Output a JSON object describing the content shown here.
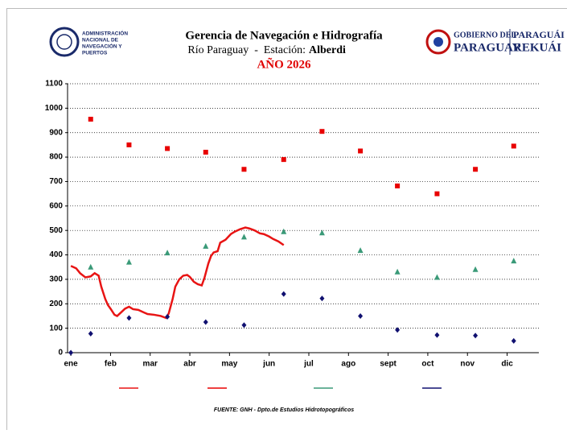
{
  "header": {
    "org_lines": [
      "ADMINISTRACIÓN",
      "NACIONAL DE",
      "NAVEGACIÓN Y",
      "PUERTOS"
    ],
    "gov_lines": [
      "GOBIERNO DEL",
      "PARAGUAY"
    ],
    "gov_guarani": [
      "PARAGUÁI",
      "REKUÁI"
    ]
  },
  "chart_data": {
    "type": "line",
    "title": "Gerencia de Navegación e Hidrografía",
    "subtitle": "Río Paraguay  -  Estación:",
    "station": "Alberdi",
    "year_label": "AÑO 2026",
    "source": "FUENTE: GNH - Dpto.de Estudios  Hidrotopográficos",
    "xlim": [
      -2.5,
      354
    ],
    "xticks": [
      {
        "value": 0,
        "label": "ene"
      },
      {
        "value": 30,
        "label": "feb"
      },
      {
        "value": 60,
        "label": "mar"
      },
      {
        "value": 90,
        "label": "abr"
      },
      {
        "value": 120,
        "label": "may"
      },
      {
        "value": 150,
        "label": "jun"
      },
      {
        "value": 180,
        "label": "jul"
      },
      {
        "value": 210,
        "label": "ago"
      },
      {
        "value": 240,
        "label": "sept"
      },
      {
        "value": 270,
        "label": "oct"
      },
      {
        "value": 300,
        "label": "nov"
      },
      {
        "value": 330,
        "label": "dic"
      }
    ],
    "ylim": [
      0,
      1100
    ],
    "yticks": [
      0,
      100,
      200,
      300,
      400,
      500,
      600,
      700,
      800,
      900,
      1000,
      1100
    ],
    "grid": true,
    "series": [
      {
        "color": "#e81414",
        "marker": "line",
        "x": [
          0,
          4,
          7,
          11,
          15,
          18,
          21,
          23,
          26,
          28,
          30,
          33,
          35,
          38,
          41,
          44,
          47,
          51,
          55,
          58,
          63,
          68,
          72,
          74,
          77,
          79,
          82,
          85,
          88,
          90,
          93,
          96,
          99,
          101,
          104,
          106,
          108,
          111,
          113,
          117,
          121,
          124,
          128,
          132,
          135,
          139,
          143,
          146,
          150,
          153,
          157,
          161
        ],
        "values": [
          355,
          345,
          325,
          308,
          312,
          325,
          315,
          270,
          220,
          195,
          180,
          155,
          150,
          165,
          180,
          188,
          178,
          175,
          165,
          158,
          155,
          150,
          142,
          160,
          220,
          270,
          300,
          315,
          318,
          310,
          290,
          280,
          275,
          305,
          365,
          395,
          410,
          415,
          450,
          462,
          485,
          495,
          505,
          512,
          508,
          500,
          488,
          485,
          475,
          465,
          455,
          440
        ]
      },
      {
        "color": "#e80000",
        "marker": "square",
        "x": [
          15,
          44,
          73,
          102,
          131,
          161,
          190,
          219,
          247,
          277,
          306,
          335
        ],
        "values": [
          955,
          850,
          835,
          820,
          750,
          790,
          905,
          825,
          682,
          650,
          750,
          845
        ]
      },
      {
        "color": "#3a9a78",
        "marker": "triangle",
        "x": [
          15,
          44,
          73,
          102,
          131,
          161,
          190,
          219,
          247,
          277,
          306,
          335
        ],
        "values": [
          350,
          370,
          408,
          435,
          473,
          495,
          490,
          418,
          330,
          308,
          340,
          375
        ]
      },
      {
        "color": "#101070",
        "marker": "diamond",
        "x": [
          0,
          15,
          44,
          73,
          102,
          131,
          161,
          190,
          219,
          247,
          277,
          306,
          335
        ],
        "values": [
          0,
          78,
          142,
          147,
          125,
          113,
          240,
          222,
          150,
          93,
          72,
          70,
          48
        ]
      }
    ]
  }
}
